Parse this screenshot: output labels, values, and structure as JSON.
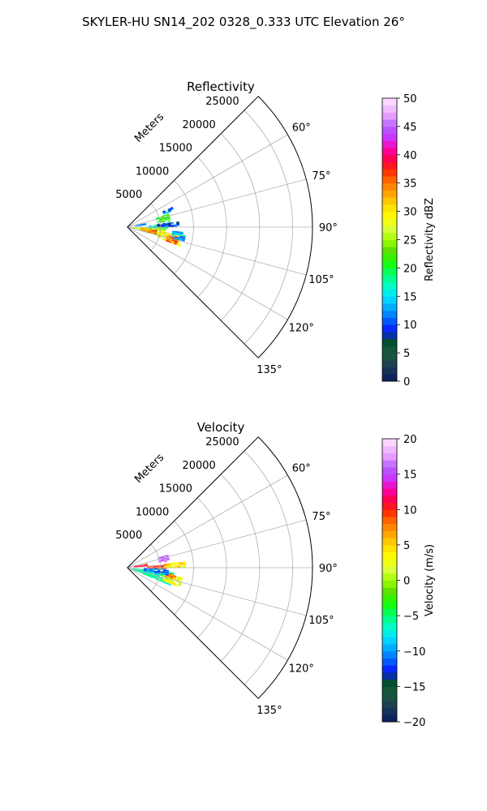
{
  "figure": {
    "suptitle": "SKYLER-HU  SN14_202  0328_0.333 UTC Elevation 26°"
  },
  "chart_data": [
    {
      "type": "heatmap",
      "projection": "polar-sector",
      "title": "Reflectivity",
      "radial_label": "Meters",
      "radial_ticks": [
        5000,
        10000,
        15000,
        20000,
        25000
      ],
      "radial_tick_labels": [
        "5000",
        "10000",
        "15000",
        "20000",
        "25000"
      ],
      "rlim": [
        0,
        28000
      ],
      "theta_range_deg": [
        45,
        135
      ],
      "theta_ticks_deg": [
        60,
        75,
        90,
        105,
        120,
        135
      ],
      "theta_tick_labels": [
        "60°",
        "75°",
        "90°",
        "105°",
        "120°",
        "135°"
      ],
      "grid": true,
      "colorbar": {
        "label": "Reflectivity dBZ",
        "range": [
          0,
          50
        ],
        "ticks": [
          0,
          5,
          10,
          15,
          20,
          25,
          30,
          35,
          40,
          45,
          50
        ],
        "tick_labels": [
          "0",
          "5",
          "10",
          "15",
          "20",
          "25",
          "30",
          "35",
          "40",
          "45",
          "50"
        ]
      },
      "echo_regions": [
        {
          "az": [
            91,
            106
          ],
          "r": [
            800,
            5600
          ],
          "value": 26
        },
        {
          "az": [
            94,
            104
          ],
          "r": [
            2000,
            4200
          ],
          "value": 34
        },
        {
          "az": [
            86,
            92
          ],
          "r": [
            3200,
            6200
          ],
          "value": 16
        },
        {
          "az": [
            84,
            90
          ],
          "r": [
            4500,
            7800
          ],
          "value": 10
        },
        {
          "az": [
            72,
            82
          ],
          "r": [
            4500,
            6200
          ],
          "value": 22
        },
        {
          "az": [
            66,
            70
          ],
          "r": [
            5800,
            7200
          ],
          "value": 11
        },
        {
          "az": [
            78,
            84
          ],
          "r": [
            1200,
            2600
          ],
          "value": 12
        },
        {
          "az": [
            98,
            110
          ],
          "r": [
            4800,
            8200
          ],
          "value": 30
        },
        {
          "az": [
            101,
            109
          ],
          "r": [
            6200,
            7600
          ],
          "value": 36
        },
        {
          "az": [
            95,
            104
          ],
          "r": [
            6800,
            8800
          ],
          "value": 13
        }
      ]
    },
    {
      "type": "heatmap",
      "projection": "polar-sector",
      "title": "Velocity",
      "radial_label": "Meters",
      "radial_ticks": [
        5000,
        10000,
        15000,
        20000,
        25000
      ],
      "radial_tick_labels": [
        "5000",
        "10000",
        "15000",
        "20000",
        "25000"
      ],
      "rlim": [
        0,
        28000
      ],
      "theta_range_deg": [
        45,
        135
      ],
      "theta_ticks_deg": [
        60,
        75,
        90,
        105,
        120,
        135
      ],
      "theta_tick_labels": [
        "60°",
        "75°",
        "90°",
        "105°",
        "120°",
        "135°"
      ],
      "grid": true,
      "colorbar": {
        "label": "Velocity (m/s)",
        "range": [
          -20,
          20
        ],
        "ticks": [
          -20,
          -15,
          -10,
          -5,
          0,
          5,
          10,
          15,
          20
        ],
        "tick_labels": [
          "−20",
          "−15",
          "−10",
          "−5",
          "0",
          "5",
          "10",
          "15",
          "20"
        ]
      },
      "echo_regions": [
        {
          "az": [
            96,
            112
          ],
          "r": [
            800,
            6800
          ],
          "value": -6
        },
        {
          "az": [
            100,
            110
          ],
          "r": [
            5600,
            8200
          ],
          "value": 2
        },
        {
          "az": [
            98,
            104
          ],
          "r": [
            5800,
            7200
          ],
          "value": 7
        },
        {
          "az": [
            86,
            92
          ],
          "r": [
            3000,
            6200
          ],
          "value": 10
        },
        {
          "az": [
            84,
            90
          ],
          "r": [
            5500,
            8800
          ],
          "value": 4
        },
        {
          "az": [
            72,
            80
          ],
          "r": [
            4800,
            6400
          ],
          "value": 16
        },
        {
          "az": [
            78,
            85
          ],
          "r": [
            1000,
            2800
          ],
          "value": 11
        },
        {
          "az": [
            92,
            100
          ],
          "r": [
            2500,
            6000
          ],
          "value": -11
        }
      ]
    }
  ]
}
